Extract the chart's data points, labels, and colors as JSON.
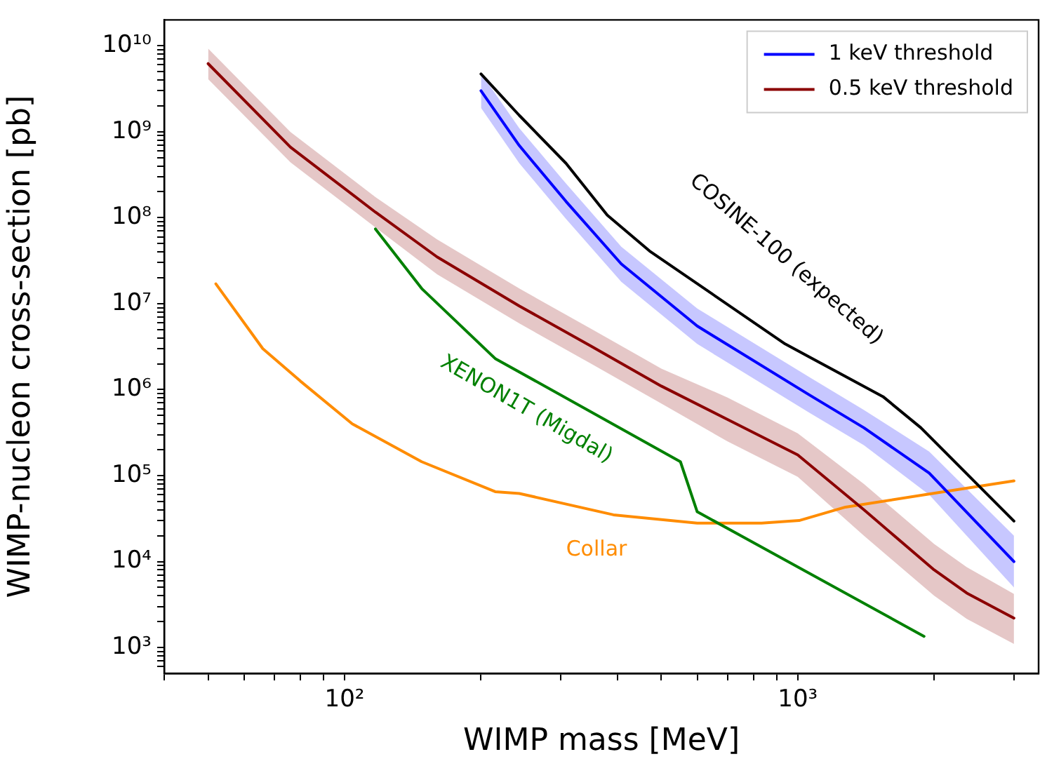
{
  "chart_data": {
    "type": "line",
    "xlabel": "WIMP mass [MeV]",
    "ylabel": "WIMP-nucleon cross-section [pb]",
    "log": "xy",
    "grid": false,
    "legend": "top right",
    "marker": "none",
    "line_style": "solid",
    "xlim": [
      40,
      3400
    ],
    "ylim": [
      500,
      20000000000
    ],
    "xticks": [
      {
        "value": 40,
        "label": null
      },
      {
        "value": 50,
        "label": null
      },
      {
        "value": 60,
        "label": null
      },
      {
        "value": 70,
        "label": null
      },
      {
        "value": 80,
        "label": null
      },
      {
        "value": 90,
        "label": null
      },
      {
        "value": 100,
        "label": "10²"
      },
      {
        "value": 200,
        "label": null
      },
      {
        "value": 300,
        "label": null
      },
      {
        "value": 400,
        "label": null
      },
      {
        "value": 500,
        "label": null
      },
      {
        "value": 600,
        "label": null
      },
      {
        "value": 700,
        "label": null
      },
      {
        "value": 800,
        "label": null
      },
      {
        "value": 900,
        "label": null
      },
      {
        "value": 1000,
        "label": "10³"
      },
      {
        "value": 2000,
        "label": null
      },
      {
        "value": 3000,
        "label": null
      }
    ],
    "yticks": [
      {
        "value": 600,
        "label": null
      },
      {
        "value": 700,
        "label": null
      },
      {
        "value": 800,
        "label": null
      },
      {
        "value": 900,
        "label": null
      },
      {
        "value": 1000,
        "label": "10³"
      },
      {
        "value": 2000,
        "label": null
      },
      {
        "value": 3000,
        "label": null
      },
      {
        "value": 4000,
        "label": null
      },
      {
        "value": 5000,
        "label": null
      },
      {
        "value": 6000,
        "label": null
      },
      {
        "value": 7000,
        "label": null
      },
      {
        "value": 8000,
        "label": null
      },
      {
        "value": 9000,
        "label": null
      },
      {
        "value": 10000,
        "label": "10⁴"
      },
      {
        "value": 20000,
        "label": null
      },
      {
        "value": 30000,
        "label": null
      },
      {
        "value": 40000,
        "label": null
      },
      {
        "value": 50000,
        "label": null
      },
      {
        "value": 60000,
        "label": null
      },
      {
        "value": 70000,
        "label": null
      },
      {
        "value": 80000,
        "label": null
      },
      {
        "value": 90000,
        "label": null
      },
      {
        "value": 100000,
        "label": "10⁵"
      },
      {
        "value": 200000,
        "label": null
      },
      {
        "value": 300000,
        "label": null
      },
      {
        "value": 400000,
        "label": null
      },
      {
        "value": 500000,
        "label": null
      },
      {
        "value": 600000,
        "label": null
      },
      {
        "value": 700000,
        "label": null
      },
      {
        "value": 800000,
        "label": null
      },
      {
        "value": 900000,
        "label": null
      },
      {
        "value": 1000000,
        "label": "10⁶"
      },
      {
        "value": 2000000,
        "label": null
      },
      {
        "value": 3000000,
        "label": null
      },
      {
        "value": 4000000,
        "label": null
      },
      {
        "value": 5000000,
        "label": null
      },
      {
        "value": 6000000,
        "label": null
      },
      {
        "value": 7000000,
        "label": null
      },
      {
        "value": 8000000,
        "label": null
      },
      {
        "value": 9000000,
        "label": null
      },
      {
        "value": 10000000,
        "label": "10⁷"
      },
      {
        "value": 20000000,
        "label": null
      },
      {
        "value": 30000000,
        "label": null
      },
      {
        "value": 40000000,
        "label": null
      },
      {
        "value": 50000000,
        "label": null
      },
      {
        "value": 60000000,
        "label": null
      },
      {
        "value": 70000000,
        "label": null
      },
      {
        "value": 80000000,
        "label": null
      },
      {
        "value": 90000000,
        "label": null
      },
      {
        "value": 100000000,
        "label": "10⁸"
      },
      {
        "value": 200000000,
        "label": null
      },
      {
        "value": 300000000,
        "label": null
      },
      {
        "value": 400000000,
        "label": null
      },
      {
        "value": 500000000,
        "label": null
      },
      {
        "value": 600000000,
        "label": null
      },
      {
        "value": 700000000,
        "label": null
      },
      {
        "value": 800000000,
        "label": null
      },
      {
        "value": 900000000,
        "label": null
      },
      {
        "value": 1000000000,
        "label": "10⁹"
      },
      {
        "value": 2000000000,
        "label": null
      },
      {
        "value": 3000000000,
        "label": null
      },
      {
        "value": 4000000000,
        "label": null
      },
      {
        "value": 5000000000,
        "label": null
      },
      {
        "value": 6000000000,
        "label": null
      },
      {
        "value": 7000000000,
        "label": null
      },
      {
        "value": 8000000000,
        "label": null
      },
      {
        "value": 9000000000,
        "label": null
      },
      {
        "value": 10000000000,
        "label": "10¹⁰"
      }
    ],
    "series": [
      {
        "name": "1 keV threshold",
        "color": "#0000ff",
        "x": [
          200,
          243,
          308,
          408,
          600,
          1060,
          1400,
          1950,
          3000
        ],
        "values": [
          3000000000.0,
          690000000.0,
          155000000.0,
          29000000.0,
          5500000.0,
          870000.0,
          360000.0,
          107000.0,
          10000.0
        ],
        "lower": [
          1900000000.0,
          430000000.0,
          97000000.0,
          18000000.0,
          3400000.0,
          540000.0,
          225000.0,
          60000.0,
          5000.0
        ],
        "upper": [
          4800000000.0,
          1100000000.0,
          250000000.0,
          46000000.0,
          8800000.0,
          1400000.0,
          580000.0,
          190000.0,
          20000.0
        ]
      },
      {
        "name": "0.5 keV threshold",
        "color": "#8b0000",
        "x": [
          50,
          76,
          117,
          160,
          243,
          350,
          500,
          700,
          1000,
          1400,
          2000,
          2360,
          3000
        ],
        "values": [
          6200000000.0,
          660000000.0,
          116000000.0,
          35000000.0,
          9400000.0,
          3200000.0,
          1100000.0,
          450000.0,
          174000.0,
          40000.0,
          8000.0,
          4300.0,
          2200.0
        ],
        "lower": [
          4100000000.0,
          440000000.0,
          77000000.0,
          22000000.0,
          5900000.0,
          2000000.0,
          690000.0,
          250000.0,
          97000.0,
          20000.0,
          4000.0,
          2150.0,
          1100.0
        ],
        "upper": [
          9300000000.0,
          990000000.0,
          174000000.0,
          56000000.0,
          15000000.0,
          5100000.0,
          1760000.0,
          810000.0,
          310000.0,
          80000.0,
          16000.0,
          8600.0,
          4200.0
        ]
      },
      {
        "name": "COSINE-100 (expected)",
        "color": "#000000",
        "x": [
          200,
          243,
          308,
          380,
          471,
          938,
          1542,
          1870,
          3000
        ],
        "values": [
          4700000000.0,
          1550000000.0,
          430000000.0,
          107000000.0,
          41000000.0,
          3400000.0,
          830000.0,
          360000.0,
          29600.0
        ]
      },
      {
        "name": "XENON1T (Migdal)",
        "color": "#008000",
        "x": [
          117,
          148,
          215,
          551,
          600,
          1900
        ],
        "values": [
          74000000.0,
          15000000.0,
          2300000.0,
          145000.0,
          38000.0,
          1350.0
        ]
      },
      {
        "name": "Collar",
        "color": "#ff8c00",
        "x": [
          52,
          66,
          80,
          104,
          148,
          215,
          243,
          392,
          600,
          832,
          1007,
          1274,
          1950,
          3000
        ],
        "values": [
          17000000.0,
          3000000.0,
          1250000.0,
          400000.0,
          145000.0,
          65000.0,
          62000.0,
          35000.0,
          28000.0,
          28000.0,
          30000.0,
          43000.0,
          61000.0,
          87000.0
        ]
      }
    ]
  }
}
